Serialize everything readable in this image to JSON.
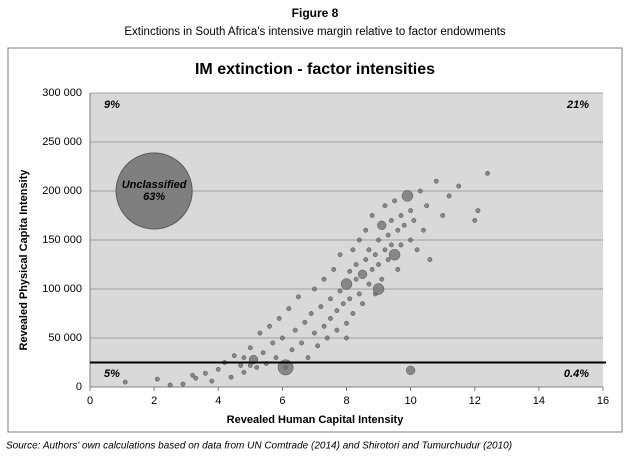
{
  "chart_data": {
    "type": "scatter",
    "figure_label": "Figure 8",
    "subtitle": "Extinctions in South Africa's intensive margin relative to factor endowments",
    "title": "IM extinction - factor intensities",
    "xlabel": "Revealed Human Capital Intensity",
    "ylabel": "Revealed Physical Capita Intensity",
    "source": "Source: Authors' own calculations based on data from UN Comtrade (2014) and Shirotori and Tumurchudur (2010)",
    "xlim": [
      0,
      16
    ],
    "xticks": [
      0,
      2,
      4,
      6,
      8,
      10,
      12,
      14,
      16
    ],
    "ylim": [
      0,
      300000
    ],
    "yticks": [
      {
        "value": 0,
        "label": "0"
      },
      {
        "value": 50000,
        "label": "50 000"
      },
      {
        "value": 100000,
        "label": "100 000"
      },
      {
        "value": 150000,
        "label": "150 000"
      },
      {
        "value": 200000,
        "label": "200 000"
      },
      {
        "value": 250000,
        "label": "250 000"
      },
      {
        "value": 300000,
        "label": "300 000"
      }
    ],
    "grid": true,
    "threshold_y": 25000,
    "quadrant_labels": {
      "top_left": "9%",
      "top_right": "21%",
      "bottom_left": "5%",
      "bottom_right": "0.4%"
    },
    "bubble": {
      "x": 2,
      "y": 200000,
      "label": [
        "Unclassified",
        "63%"
      ],
      "color": "#7f7f7f"
    },
    "series": [
      {
        "color": "#6b6b6b",
        "x": [
          1.1,
          2.1,
          2.9,
          3.3,
          3.6,
          3.8,
          4.0,
          4.2,
          4.4,
          4.5,
          4.7,
          4.8,
          5.0,
          5.1,
          5.2,
          5.3,
          5.4,
          5.5,
          5.6,
          5.7,
          5.8,
          5.9,
          6.0,
          6.1,
          6.2,
          6.3,
          6.4,
          6.5,
          6.6,
          6.7,
          6.8,
          6.9,
          7.0,
          7.0,
          7.1,
          7.2,
          7.3,
          7.3,
          7.4,
          7.5,
          7.5,
          7.6,
          7.7,
          7.7,
          7.8,
          7.8,
          7.9,
          8.0,
          8.0,
          8.1,
          8.1,
          8.2,
          8.2,
          8.3,
          8.3,
          8.4,
          8.4,
          8.5,
          8.5,
          8.6,
          8.6,
          8.7,
          8.7,
          8.8,
          8.8,
          8.9,
          8.9,
          9.0,
          9.0,
          9.1,
          9.1,
          9.2,
          9.2,
          9.3,
          9.3,
          9.4,
          9.4,
          9.5,
          9.5,
          9.6,
          9.6,
          9.7,
          9.7,
          9.8,
          9.9,
          10.0,
          10.0,
          10.1,
          10.2,
          10.3,
          10.4,
          10.5,
          10.6,
          10.8,
          11.0,
          11.2,
          11.5,
          12.0,
          12.1,
          12.4,
          10.0,
          6.1,
          5.0,
          4.8,
          3.2,
          2.5,
          9.0,
          8.0
        ],
        "y": [
          5000,
          8000,
          3000,
          9000,
          14000,
          6000,
          18000,
          25000,
          10000,
          32000,
          22000,
          15000,
          40000,
          28000,
          20000,
          55000,
          35000,
          24000,
          62000,
          45000,
          30000,
          70000,
          50000,
          20000,
          80000,
          38000,
          58000,
          92000,
          45000,
          66000,
          30000,
          75000,
          55000,
          100000,
          42000,
          82000,
          62000,
          110000,
          50000,
          90000,
          70000,
          120000,
          78000,
          58000,
          98000,
          135000,
          85000,
          105000,
          65000,
          118000,
          90000,
          140000,
          75000,
          110000,
          125000,
          95000,
          150000,
          115000,
          85000,
          130000,
          160000,
          105000,
          140000,
          120000,
          175000,
          135000,
          95000,
          150000,
          125000,
          165000,
          110000,
          140000,
          185000,
          130000,
          155000,
          145000,
          170000,
          135000,
          190000,
          160000,
          120000,
          175000,
          145000,
          165000,
          195000,
          150000,
          180000,
          170000,
          140000,
          200000,
          160000,
          185000,
          130000,
          210000,
          175000,
          195000,
          205000,
          170000,
          180000,
          218000,
          17000,
          20000,
          22000,
          30000,
          12000,
          2000,
          100000,
          50000
        ],
        "sizes": [
          2,
          2,
          2,
          2,
          2,
          2,
          2,
          2,
          2,
          2,
          2,
          2,
          2,
          4,
          2,
          2,
          2,
          2,
          2,
          2,
          2,
          2,
          2,
          2,
          2,
          2,
          2,
          2,
          2,
          2,
          2,
          2,
          2,
          2,
          2,
          2,
          2,
          2,
          2,
          2,
          2,
          2,
          2,
          2,
          2,
          2,
          2,
          5,
          2,
          2,
          2,
          2,
          2,
          2,
          2,
          2,
          2,
          4,
          2,
          2,
          2,
          2,
          2,
          2,
          2,
          2,
          2,
          2,
          2,
          4,
          2,
          2,
          2,
          2,
          2,
          2,
          2,
          5,
          2,
          2,
          2,
          2,
          2,
          2,
          5,
          2,
          2,
          2,
          2,
          2,
          2,
          2,
          2,
          2,
          2,
          2,
          2,
          2,
          2,
          2,
          4,
          7,
          2,
          2,
          2,
          2,
          5,
          2
        ]
      }
    ]
  }
}
